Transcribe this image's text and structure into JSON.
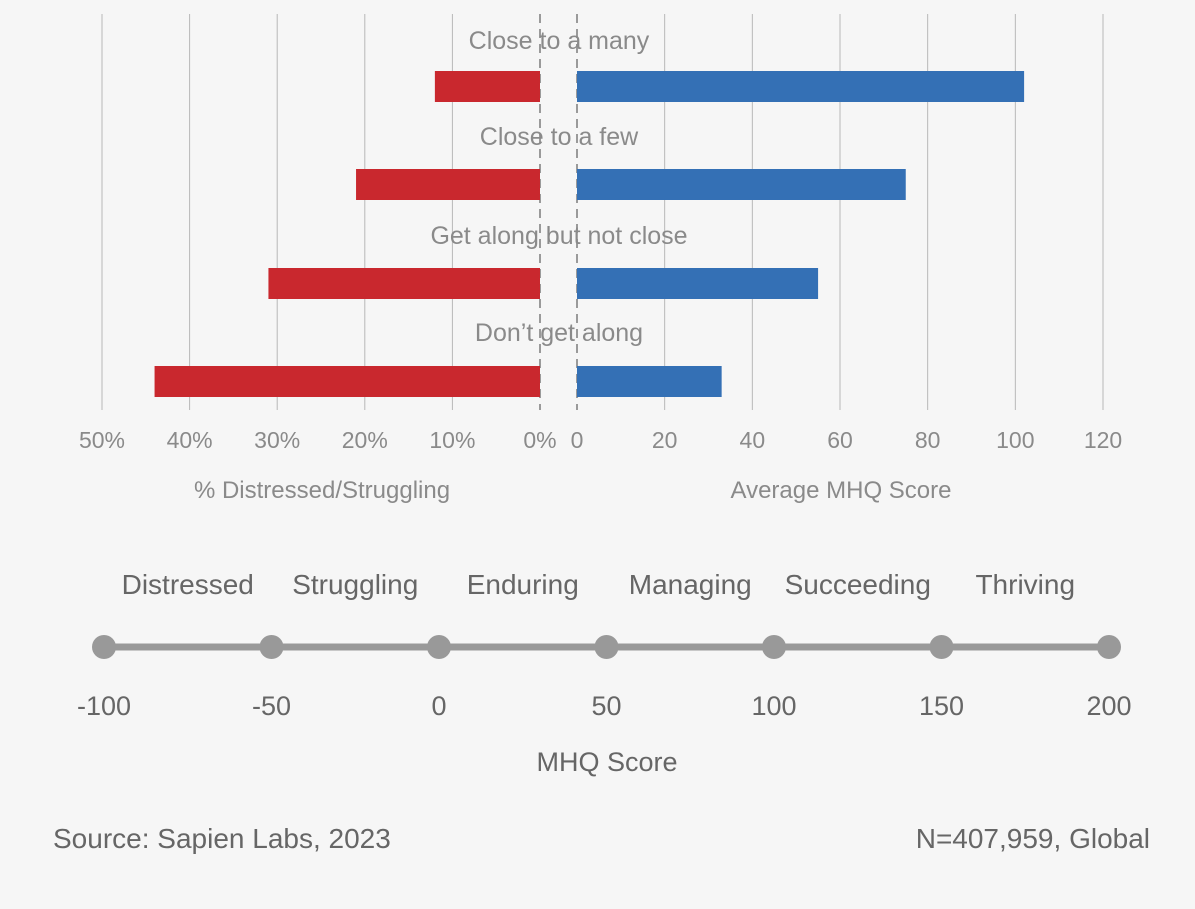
{
  "chart_data": {
    "type": "bar",
    "orientation": "horizontal-diverging",
    "categories": [
      "Close to a many",
      "Close to a few",
      "Get along but not close",
      "Don’t get along"
    ],
    "series": [
      {
        "name": "% Distressed/Struggling",
        "values": [
          12,
          21,
          31,
          44
        ],
        "color": "#c9282e",
        "axis_label": "% Distressed/Struggling",
        "xlim": [
          0,
          50
        ],
        "ticks": [
          "50%",
          "40%",
          "30%",
          "20%",
          "10%",
          "0%"
        ]
      },
      {
        "name": "Average MHQ Score",
        "values": [
          102,
          75,
          55,
          33
        ],
        "color": "#3470b5",
        "axis_label": "Average MHQ Score",
        "xlim": [
          0,
          120
        ],
        "ticks": [
          "0",
          "20",
          "40",
          "60",
          "80",
          "100",
          "120"
        ]
      }
    ],
    "grid": true
  },
  "scale": {
    "categories": [
      "Distressed",
      "Struggling",
      "Enduring",
      "Managing",
      "Succeeding",
      "Thriving"
    ],
    "ticks": [
      "-100",
      "-50",
      "0",
      "50",
      "100",
      "150",
      "200"
    ],
    "title": "MHQ Score",
    "color": "#999999"
  },
  "footer": {
    "source": "Source: Sapien Labs, 2023",
    "sample": "N=407,959, Global"
  }
}
